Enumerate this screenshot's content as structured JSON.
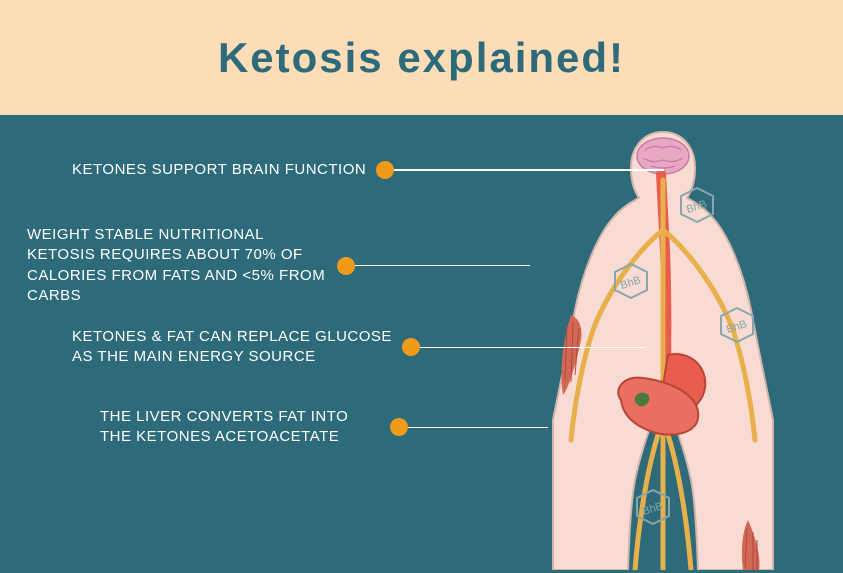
{
  "header": {
    "title": "Ketosis explained!",
    "background_color": "#fcddb7",
    "title_color": "#2d6a7a"
  },
  "main": {
    "background_color": "#2d6a7a",
    "text_color": "#ffffff",
    "dot_color": "#f09a1a",
    "line_color": "#ffffff",
    "body_skin_color": "#f8dcd3",
    "body_outline_color": "#d4b5ac",
    "brain_color": "#e8a8c4",
    "organ_red": "#e85d4e",
    "organ_dark": "#b84538",
    "vessel_color": "#e8b04a",
    "muscle_color": "#d06858",
    "hex_stroke": "#8aa5ab",
    "hex_label": "BhB"
  },
  "callouts": [
    {
      "text": "KETONES SUPPORT BRAIN FUNCTION",
      "line_width": 270
    },
    {
      "text": "WEIGHT STABLE NUTRITIONAL KETOSIS REQUIRES ABOUT 70% OF CALORIES FROM FATS AND <5% FROM CARBS",
      "line_width": 175
    },
    {
      "text": "KETONES & FAT CAN REPLACE GLUCOSE AS THE MAIN ENERGY SOURCE",
      "line_width": 225
    },
    {
      "text": "THE LIVER CONVERTS FAT INTO THE KETONES ACETOACETATE",
      "line_width": 140
    }
  ]
}
